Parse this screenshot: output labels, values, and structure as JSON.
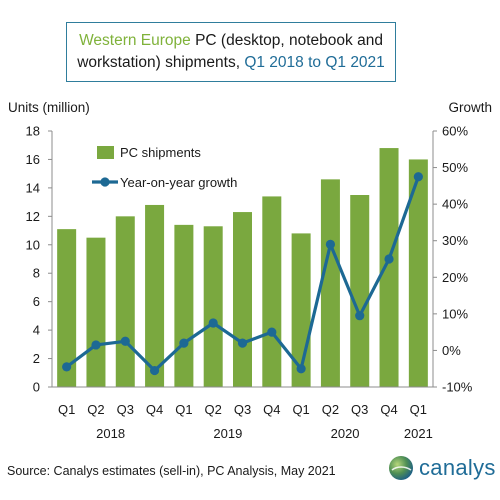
{
  "title": {
    "part1": "Western Europe",
    "part2": " PC (desktop, notebook and",
    "line2a": "workstation) shipments, ",
    "line2b": "Q1 2018 to Q1 2021"
  },
  "source": "Source: Canalys estimates (sell-in), PC Analysis, May 2021",
  "logo": {
    "text": "canalys",
    "icon": "globe-logo-icon"
  },
  "colors": {
    "bar": "#7aa83f",
    "line": "#1d6994",
    "title_accent_green": "#7fb23a",
    "title_accent_blue": "#1f6c97"
  },
  "chart_data": {
    "type": "bar",
    "categories": [
      "Q1",
      "Q2",
      "Q3",
      "Q4",
      "Q1",
      "Q2",
      "Q3",
      "Q4",
      "Q1",
      "Q2",
      "Q3",
      "Q4",
      "Q1"
    ],
    "years": [
      {
        "label": "2018",
        "from": 0,
        "to": 3
      },
      {
        "label": "2019",
        "from": 4,
        "to": 7
      },
      {
        "label": "2020",
        "from": 8,
        "to": 11
      },
      {
        "label": "2021",
        "from": 12,
        "to": 12
      }
    ],
    "series": [
      {
        "name": "PC shipments",
        "type": "bar",
        "axis": "left",
        "values": [
          11.1,
          10.5,
          12.0,
          12.8,
          11.4,
          11.3,
          12.3,
          13.4,
          10.8,
          14.6,
          13.5,
          16.8,
          16.0
        ]
      },
      {
        "name": "Year-on-year growth",
        "type": "line",
        "axis": "right",
        "values": [
          -4.5,
          1.5,
          2.5,
          -5.5,
          2.0,
          7.5,
          2.0,
          5.0,
          -5.0,
          29.0,
          9.5,
          25.0,
          47.5
        ]
      }
    ],
    "ylabel_left": "Units (million)",
    "ylabel_right": "Growth",
    "ylim_left": [
      0,
      18
    ],
    "yticks_left": [
      "0",
      "2",
      "4",
      "6",
      "8",
      "10",
      "12",
      "14",
      "16",
      "18"
    ],
    "ylim_right": [
      -10,
      60
    ],
    "yticks_right": [
      "-10%",
      "0%",
      "10%",
      "20%",
      "30%",
      "40%",
      "50%",
      "60%"
    ],
    "legend_position": "top-left",
    "grid": false
  }
}
